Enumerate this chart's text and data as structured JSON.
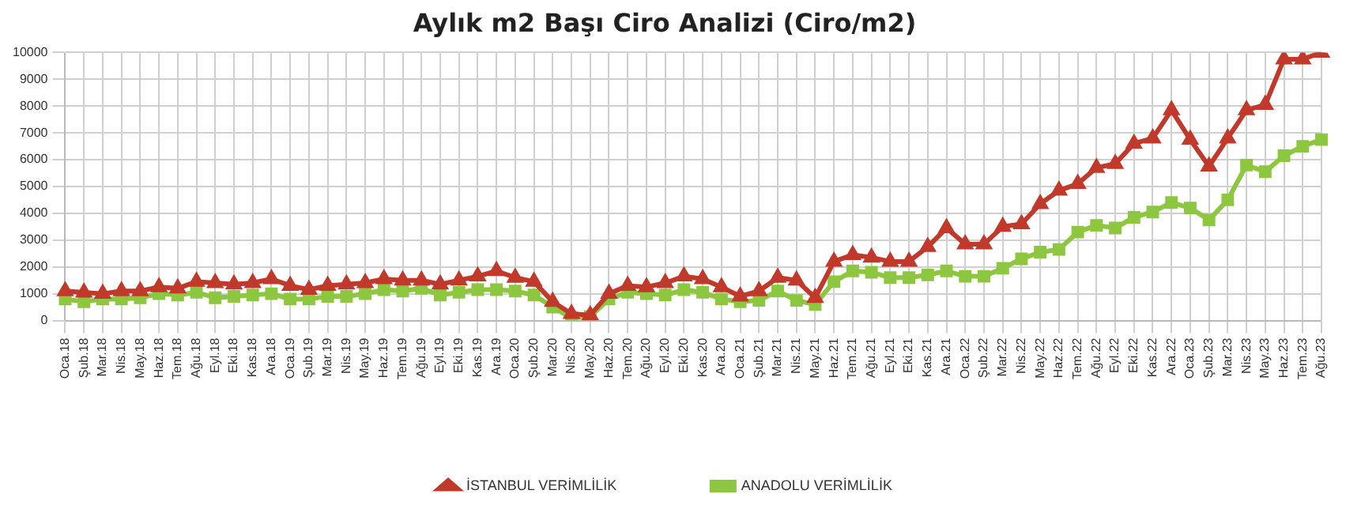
{
  "chart_data": {
    "type": "line",
    "title": "Aylık m2 Başı Ciro Analizi (Ciro/m2)",
    "categories": [
      "Oca.18",
      "Şub.18",
      "Mar.18",
      "Nis.18",
      "May.18",
      "Haz.18",
      "Tem.18",
      "Ağu.18",
      "Eyl.18",
      "Eki.18",
      "Kas.18",
      "Ara.18",
      "Oca.19",
      "Şub.19",
      "Mar.19",
      "Nis.19",
      "May.19",
      "Haz.19",
      "Tem.19",
      "Ağu.19",
      "Eyl.19",
      "Eki.19",
      "Kas.19",
      "Ara.19",
      "Oca.20",
      "Şub.20",
      "Mar.20",
      "Nis.20",
      "May.20",
      "Haz.20",
      "Tem.20",
      "Ağu.20",
      "Eyl.20",
      "Eki.20",
      "Kas.20",
      "Ara.20",
      "Oca.21",
      "Şub.21",
      "Mar.21",
      "Nis.21",
      "May.21",
      "Haz.21",
      "Tem.21",
      "Ağu.21",
      "Eyl.21",
      "Eki.21",
      "Kas.21",
      "Ara.21",
      "Oca.22",
      "Şub.22",
      "Mar.22",
      "Nis.22",
      "May.22",
      "Haz.22",
      "Tem.22",
      "Ağu.22",
      "Eyl.22",
      "Eki.22",
      "Kas.22",
      "Ara.22",
      "Oca.23",
      "Şub.23",
      "Mar.23",
      "Nis.23",
      "May.23",
      "Haz.23",
      "Tem.23",
      "Ağu.23"
    ],
    "series": [
      {
        "name": "İSTANBUL VERİMLİLİK",
        "color": "#c0392b",
        "marker": "triangle",
        "values": [
          1100,
          1050,
          1000,
          1100,
          1100,
          1250,
          1200,
          1450,
          1400,
          1350,
          1400,
          1550,
          1300,
          1150,
          1300,
          1350,
          1400,
          1550,
          1500,
          1500,
          1350,
          1500,
          1650,
          1850,
          1600,
          1450,
          700,
          250,
          200,
          1000,
          1300,
          1250,
          1400,
          1650,
          1550,
          1250,
          900,
          1100,
          1600,
          1500,
          850,
          2200,
          2450,
          2350,
          2200,
          2200,
          2750,
          3450,
          2850,
          2850,
          3500,
          3600,
          4350,
          4850,
          5100,
          5700,
          5850,
          6600,
          6800,
          7850,
          6750,
          5750,
          6800,
          7850,
          8050,
          9750,
          9750,
          10000
        ]
      },
      {
        "name": "ANADOLU VERİMLİLİK",
        "color": "#8dc63f",
        "marker": "square",
        "values": [
          800,
          700,
          800,
          800,
          850,
          1000,
          950,
          1050,
          850,
          900,
          950,
          1000,
          800,
          800,
          900,
          900,
          1000,
          1150,
          1100,
          1200,
          950,
          1050,
          1150,
          1150,
          1100,
          950,
          500,
          100,
          150,
          800,
          1050,
          1000,
          950,
          1150,
          1050,
          800,
          700,
          750,
          1100,
          750,
          600,
          1450,
          1850,
          1800,
          1600,
          1600,
          1700,
          1850,
          1650,
          1650,
          1950,
          2300,
          2550,
          2650,
          3300,
          3550,
          3450,
          3850,
          4050,
          4400,
          4200,
          3750,
          4500,
          5800,
          5550,
          6150,
          6500,
          6750
        ]
      }
    ],
    "ylim": [
      0,
      10000
    ],
    "yticks": [
      0,
      1000,
      2000,
      3000,
      4000,
      5000,
      6000,
      7000,
      8000,
      9000,
      10000
    ],
    "grid": true,
    "legend": "bottom",
    "line_style": "solid"
  }
}
